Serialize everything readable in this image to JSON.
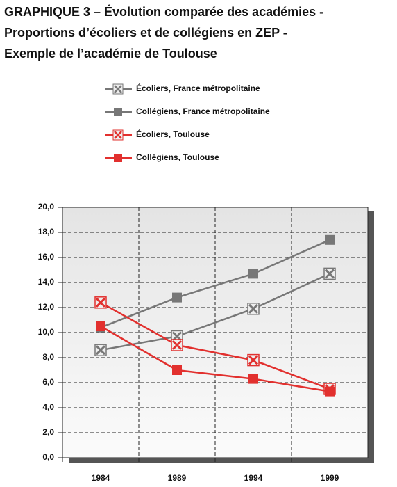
{
  "chart_data": {
    "type": "line",
    "title": [
      "GRAPHIQUE 3 – Évolution comparée des académies -",
      "Proportions d’écoliers et de collégiens en ZEP -",
      "Exemple de l’académie de Toulouse"
    ],
    "categories": [
      "1984",
      "1989",
      "1994",
      "1999"
    ],
    "series": [
      {
        "name": "Écoliers, France métropolitaine",
        "color": "#777777",
        "marker": "x-square",
        "values": [
          8.6,
          9.7,
          11.9,
          14.7
        ]
      },
      {
        "name": "Collégiens, France métropolitaine",
        "color": "#777777",
        "marker": "square",
        "values": [
          10.4,
          12.8,
          14.7,
          17.4
        ]
      },
      {
        "name": "Écoliers, Toulouse",
        "color": "#e2302e",
        "marker": "x-square",
        "values": [
          12.4,
          9.0,
          7.8,
          5.5
        ]
      },
      {
        "name": "Collégiens, Toulouse",
        "color": "#e2302e",
        "marker": "square",
        "values": [
          10.5,
          7.0,
          6.3,
          5.3
        ]
      }
    ],
    "ylim": [
      0,
      20
    ],
    "yticks": [
      {
        "value": 0,
        "label": "0,0"
      },
      {
        "value": 2,
        "label": "2,0"
      },
      {
        "value": 4,
        "label": "4,0"
      },
      {
        "value": 6,
        "label": "6,0"
      },
      {
        "value": 8,
        "label": "8,0"
      },
      {
        "value": 10,
        "label": "10,0"
      },
      {
        "value": 12,
        "label": "12,0"
      },
      {
        "value": 14,
        "label": "14,0"
      },
      {
        "value": 16,
        "label": "16,0"
      },
      {
        "value": 18,
        "label": "18,0"
      },
      {
        "value": 20,
        "label": "20,0"
      }
    ],
    "grid": true
  }
}
